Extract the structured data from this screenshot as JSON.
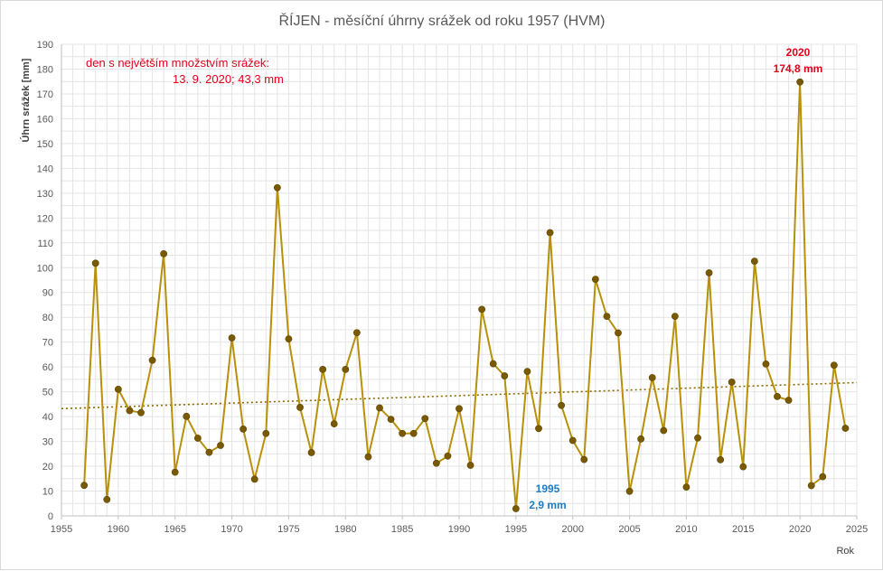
{
  "colors": {
    "series": "#b8900a",
    "marker": "#7a5a00",
    "trend": "#8a6a00",
    "grid": "#e4e4e4",
    "max_annotation": "#e3001b",
    "min_annotation": "#1f7cc1"
  },
  "chart_data": {
    "type": "line",
    "title": "ŘÍJEN - měsíční úhrny srážek od roku 1957 (HVM)",
    "xlabel": "Rok",
    "ylabel": "Úhrn srážek [mm]",
    "xlim": [
      1955,
      2025
    ],
    "ylim": [
      0,
      190
    ],
    "x_ticks": [
      1955,
      1960,
      1965,
      1970,
      1975,
      1980,
      1985,
      1990,
      1995,
      2000,
      2005,
      2010,
      2015,
      2020,
      2025
    ],
    "y_ticks": [
      0,
      10,
      20,
      30,
      40,
      50,
      60,
      70,
      80,
      90,
      100,
      110,
      120,
      130,
      140,
      150,
      160,
      170,
      180,
      190
    ],
    "grid": true,
    "legend": "none",
    "series": [
      {
        "x": [
          1957,
          1958,
          1959,
          1960,
          1961,
          1962,
          1963,
          1964,
          1965,
          1966,
          1967,
          1968,
          1969,
          1970,
          1971,
          1972,
          1973,
          1974,
          1975,
          1976,
          1977,
          1978,
          1979,
          1980,
          1981,
          1982,
          1983,
          1984,
          1985,
          1986,
          1987,
          1988,
          1989,
          1990,
          1991,
          1992,
          1993,
          1994,
          1995,
          1996,
          1997,
          1998,
          1999,
          2000,
          2001,
          2002,
          2003,
          2004,
          2005,
          2006,
          2007,
          2008,
          2009,
          2010,
          2011,
          2012,
          2013,
          2014,
          2015,
          2016,
          2017,
          2018,
          2019,
          2020,
          2021,
          2022,
          2023,
          2024
        ],
        "values": [
          12.3,
          101.8,
          6.6,
          51.0,
          42.4,
          41.6,
          62.7,
          105.6,
          17.6,
          40.1,
          31.3,
          25.6,
          28.4,
          71.7,
          35.0,
          14.8,
          33.2,
          132.2,
          71.3,
          43.7,
          25.5,
          59.0,
          37.1,
          59.0,
          73.8,
          23.8,
          43.5,
          38.9,
          33.2,
          33.2,
          39.2,
          21.2,
          24.1,
          43.2,
          20.4,
          83.2,
          61.3,
          56.4,
          2.9,
          58.2,
          35.2,
          114.1,
          44.5,
          30.4,
          22.7,
          95.3,
          80.4,
          73.7,
          9.9,
          31.0,
          55.7,
          34.4,
          80.4,
          11.6,
          31.4,
          97.9,
          22.6,
          53.9,
          19.8,
          102.6,
          61.2,
          48.1,
          46.6,
          174.8,
          12.2,
          15.8,
          60.7,
          35.3
        ]
      }
    ],
    "trendline": {
      "type": "linear",
      "y_at_xmin": 43.2,
      "y_at_xmax": 53.7
    },
    "annotations": {
      "note_line1": "den s největším množstvím srážek:",
      "note_line2": "13. 9. 2020;  43,3  mm",
      "max_year": "2020",
      "max_value": "174,8  mm",
      "min_year": "1995",
      "min_value": "2,9 mm"
    }
  }
}
